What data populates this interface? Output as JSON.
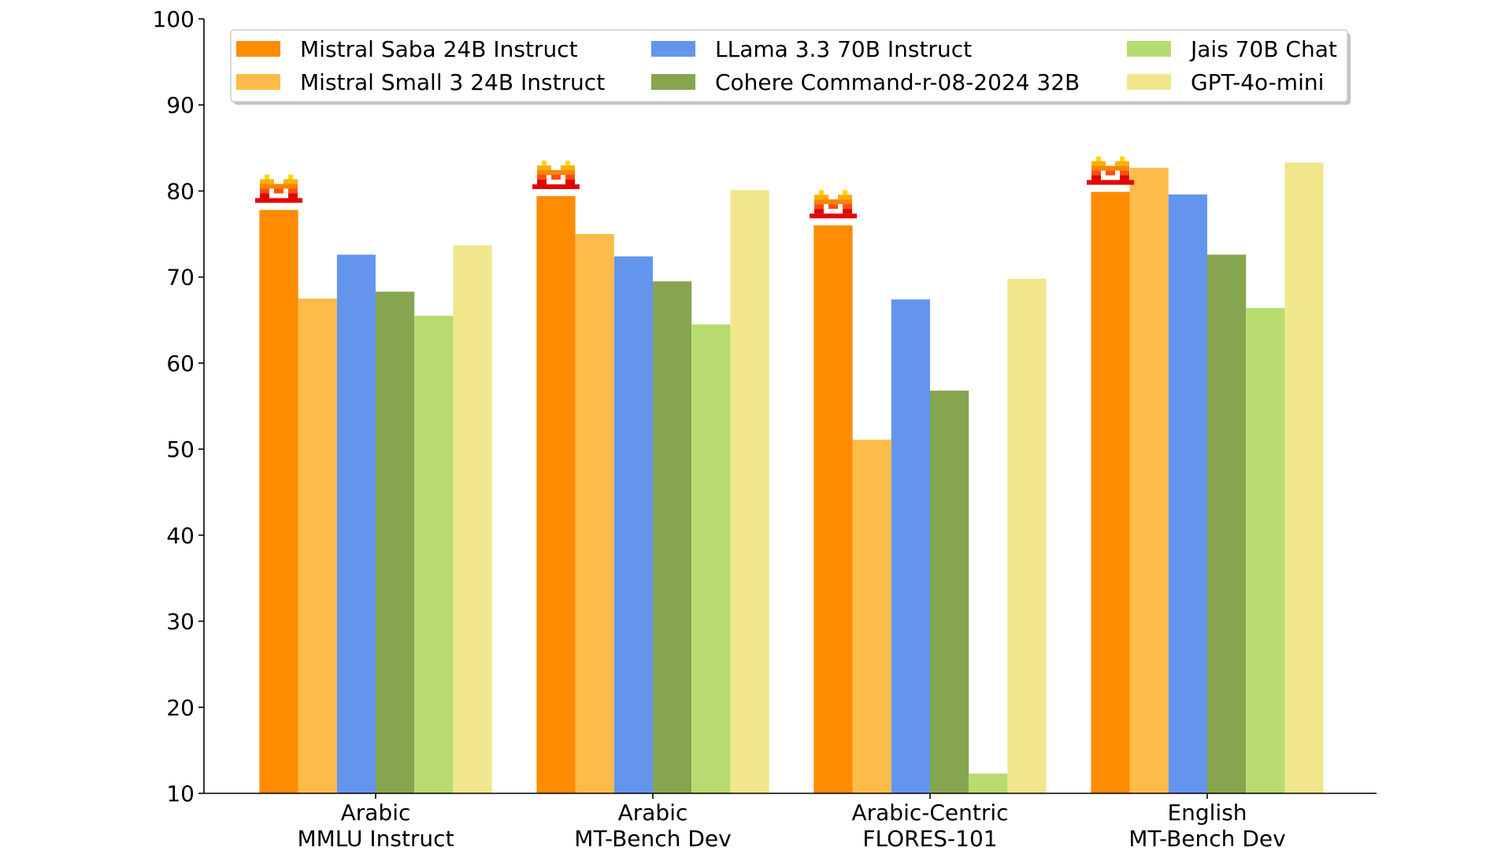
{
  "chart_data": {
    "type": "bar",
    "title": "",
    "xlabel": "",
    "ylabel": "",
    "ylim": [
      10,
      100
    ],
    "yticks": [
      10,
      20,
      30,
      40,
      50,
      60,
      70,
      80,
      90,
      100
    ],
    "grid": false,
    "legend_position": "top",
    "categories": [
      [
        "Arabic",
        "MMLU Instruct"
      ],
      [
        "Arabic",
        "MT-Bench Dev"
      ],
      [
        "Arabic-Centric",
        "FLORES-101"
      ],
      [
        "English",
        "MT-Bench Dev"
      ]
    ],
    "series": [
      {
        "name": "Mistral Saba 24B Instruct",
        "color": "#FF8C00",
        "values": [
          77.8,
          79.4,
          76.0,
          79.9
        ],
        "marker": "mistral-logo-icon"
      },
      {
        "name": "Mistral Small 3 24B Instruct",
        "color": "#FDBB4A",
        "values": [
          67.5,
          75.0,
          51.1,
          82.7
        ]
      },
      {
        "name": "LLama 3.3 70B Instruct",
        "color": "#6495ED",
        "values": [
          72.6,
          72.4,
          67.4,
          79.6
        ]
      },
      {
        "name": "Cohere Command-r-08-2024 32B",
        "color": "#85A54F",
        "values": [
          68.3,
          69.5,
          56.8,
          72.6
        ]
      },
      {
        "name": "Jais 70B Chat",
        "color": "#B8DB6F",
        "values": [
          65.5,
          64.5,
          12.3,
          66.4
        ]
      },
      {
        "name": "GPT-4o-mini",
        "color": "#F0E68C",
        "values": [
          73.7,
          80.1,
          69.8,
          83.3
        ]
      }
    ]
  }
}
